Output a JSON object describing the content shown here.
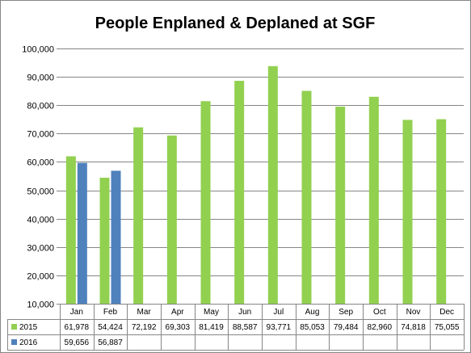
{
  "chart_data": {
    "type": "bar",
    "title": "People Enplaned & Deplaned at SGF",
    "categories": [
      "Jan",
      "Feb",
      "Mar",
      "Apr",
      "May",
      "Jun",
      "Jul",
      "Aug",
      "Sep",
      "Oct",
      "Nov",
      "Dec"
    ],
    "ylim": [
      10000,
      100000
    ],
    "yticks": [
      10000,
      20000,
      30000,
      40000,
      50000,
      60000,
      70000,
      80000,
      90000,
      100000
    ],
    "ytick_labels": [
      "10,000",
      "20,000",
      "30,000",
      "40,000",
      "50,000",
      "60,000",
      "70,000",
      "80,000",
      "90,000",
      "100,000"
    ],
    "grid": true,
    "legend": "data-table",
    "series": [
      {
        "name": "2015",
        "color": "#92d050",
        "values": [
          61978,
          54424,
          72192,
          69303,
          81419,
          88587,
          93771,
          85053,
          79484,
          82960,
          74818,
          75055
        ],
        "labels": [
          "61,978",
          "54,424",
          "72,192",
          "69,303",
          "81,419",
          "88,587",
          "93,771",
          "85,053",
          "79,484",
          "82,960",
          "74,818",
          "75,055"
        ]
      },
      {
        "name": "2016",
        "color": "#4f81bd",
        "values": [
          59656,
          56887,
          null,
          null,
          null,
          null,
          null,
          null,
          null,
          null,
          null,
          null
        ],
        "labels": [
          "59,656",
          "56,887",
          "",
          "",
          "",
          "",
          "",
          "",
          "",
          "",
          "",
          ""
        ]
      }
    ]
  }
}
